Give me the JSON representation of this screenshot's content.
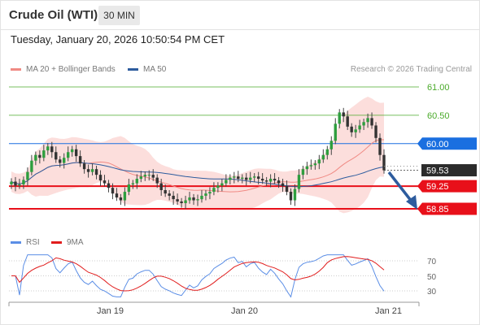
{
  "header": {
    "title": "Crude Oil (WTI)",
    "timeframe": "30 MIN",
    "datetime": "Tuesday, January 20, 2026 10:50:54 PM CET"
  },
  "legend": {
    "bollinger": {
      "label": "MA 20 + Bollinger Bands",
      "color": "#f08a84"
    },
    "ma50": {
      "label": "MA 50",
      "color": "#2d5c9e"
    },
    "credit": "Research © 2026 Trading Central",
    "rsi": {
      "label": "RSI",
      "color": "#5b8ee6"
    },
    "rsi_ma": {
      "label": "9MA",
      "color": "#e11d1d"
    }
  },
  "levels": [
    {
      "value": 61.0,
      "label": "61.00",
      "kind": "resistance",
      "color": "#4aaa2a"
    },
    {
      "value": 60.5,
      "label": "60.50",
      "kind": "resistance",
      "color": "#4aaa2a"
    },
    {
      "value": 60.0,
      "label": "60.00",
      "kind": "pivot",
      "color": "#1a6fe0"
    },
    {
      "value": 59.53,
      "label": "59.53",
      "kind": "last",
      "color": "#2b2b2b"
    },
    {
      "value": 59.25,
      "label": "59.25",
      "kind": "support",
      "color": "#e8101a"
    },
    {
      "value": 58.85,
      "label": "58.85",
      "kind": "support",
      "color": "#e8101a"
    }
  ],
  "rsi_levels": [
    "70",
    "50",
    "30"
  ],
  "x_labels": [
    "Jan 19",
    "Jan 20",
    "Jan 21"
  ],
  "chart_data": {
    "type": "candlestick",
    "price_range": [
      58.7,
      61.15
    ],
    "rsi_range": [
      20,
      80
    ],
    "close": [
      59.33,
      59.26,
      59.28,
      59.36,
      59.5,
      59.7,
      59.8,
      59.75,
      59.88,
      59.95,
      59.85,
      59.72,
      59.66,
      59.75,
      59.85,
      59.9,
      59.78,
      59.65,
      59.55,
      59.5,
      59.55,
      59.45,
      59.35,
      59.3,
      59.22,
      59.12,
      59.05,
      59.0,
      59.15,
      59.28,
      59.3,
      59.38,
      59.42,
      59.45,
      59.45,
      59.4,
      59.3,
      59.18,
      59.12,
      59.08,
      59.02,
      58.98,
      58.95,
      59.0,
      59.05,
      59.0,
      59.02,
      59.08,
      59.12,
      59.15,
      59.22,
      59.26,
      59.3,
      59.36,
      59.4,
      59.42,
      59.38,
      59.4,
      59.36,
      59.4,
      59.42,
      59.38,
      59.35,
      59.33,
      59.38,
      59.35,
      59.3,
      59.25,
      59.15,
      59.0,
      59.2,
      59.45,
      59.55,
      59.6,
      59.62,
      59.65,
      59.72,
      59.8,
      59.9,
      60.05,
      60.35,
      60.55,
      60.48,
      60.3,
      60.2,
      60.25,
      60.32,
      60.38,
      60.45,
      60.32,
      60.1,
      59.8,
      59.53
    ]
  }
}
